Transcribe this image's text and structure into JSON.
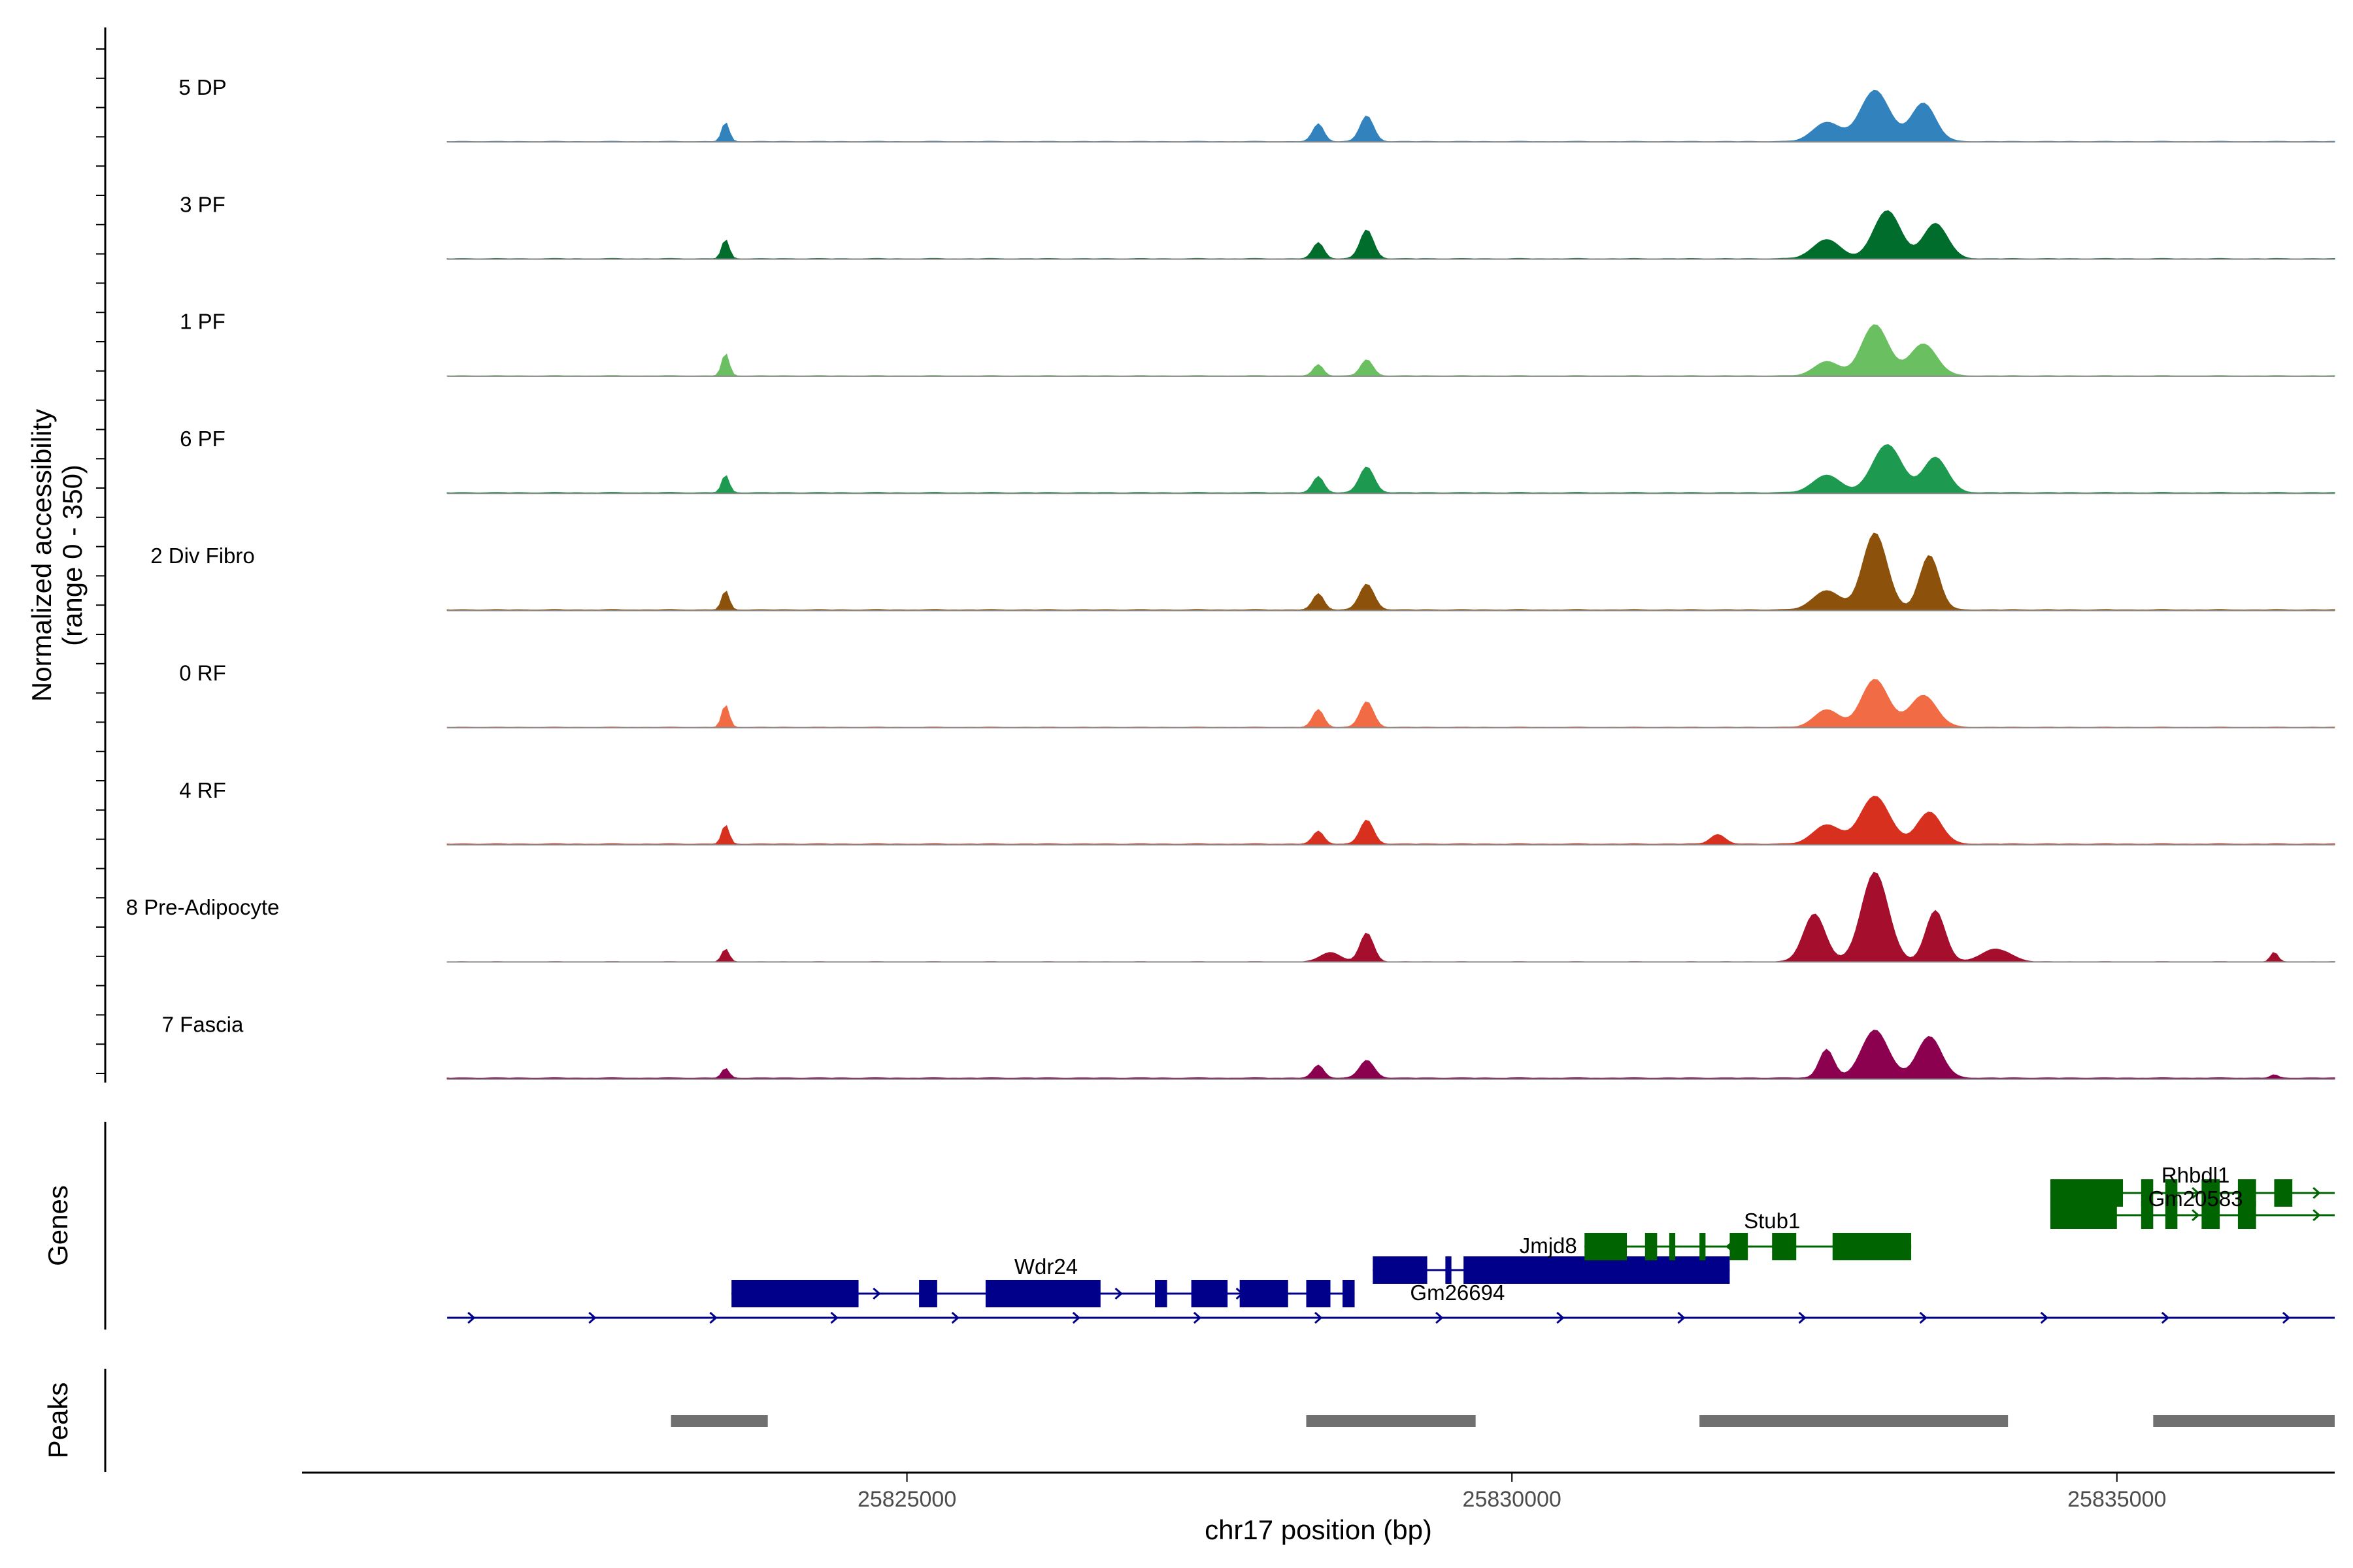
{
  "chart_data": {
    "type": "area",
    "title": "",
    "xlabel": "chr17 position (bp)",
    "ylabel_line1": "Normalized accessibility",
    "ylabel_line2": "(range 0 - 350)",
    "ylim": [
      0,
      350
    ],
    "xlim": [
      25820000,
      25836800
    ],
    "x_ticks": [
      25825000,
      25830000,
      25835000
    ],
    "x_tick_labels": [
      "25825000",
      "25830000",
      "25835000"
    ],
    "track_start": 25821200,
    "track_end": 25836800,
    "series": [
      {
        "name": "5 DP",
        "color": "#3182bd",
        "baseline": 1,
        "peaks": [
          [
            25823500,
            60,
            30
          ],
          [
            25828400,
            55,
            45
          ],
          [
            25828800,
            80,
            55
          ],
          [
            25833000,
            160,
            120
          ],
          [
            25833400,
            120,
            100
          ],
          [
            25832600,
            60,
            110
          ]
        ]
      },
      {
        "name": "3 PF",
        "color": "#006d2c",
        "baseline": 1,
        "peaks": [
          [
            25823500,
            60,
            30
          ],
          [
            25828400,
            50,
            45
          ],
          [
            25828800,
            90,
            55
          ],
          [
            25833100,
            150,
            110
          ],
          [
            25833500,
            110,
            100
          ],
          [
            25832600,
            60,
            110
          ]
        ]
      },
      {
        "name": "1 PF",
        "color": "#6abf60",
        "baseline": 1,
        "peaks": [
          [
            25823500,
            70,
            30
          ],
          [
            25828400,
            35,
            40
          ],
          [
            25828800,
            50,
            50
          ],
          [
            25833000,
            160,
            110
          ],
          [
            25833400,
            100,
            110
          ],
          [
            25832600,
            45,
            100
          ]
        ]
      },
      {
        "name": "6 PF",
        "color": "#1d9a4f",
        "baseline": 2,
        "peaks": [
          [
            25823500,
            55,
            30
          ],
          [
            25828400,
            50,
            45
          ],
          [
            25828800,
            80,
            60
          ],
          [
            25833100,
            150,
            120
          ],
          [
            25833500,
            110,
            100
          ],
          [
            25832600,
            55,
            110
          ]
        ]
      },
      {
        "name": "2 Div Fibro",
        "color": "#8c510a",
        "baseline": 2,
        "peaks": [
          [
            25823500,
            60,
            30
          ],
          [
            25828400,
            50,
            45
          ],
          [
            25828800,
            80,
            60
          ],
          [
            25833000,
            240,
            100
          ],
          [
            25833450,
            170,
            80
          ],
          [
            25832600,
            60,
            110
          ]
        ]
      },
      {
        "name": "0 RF",
        "color": "#f16b45",
        "baseline": 1,
        "peaks": [
          [
            25823500,
            70,
            30
          ],
          [
            25828400,
            55,
            45
          ],
          [
            25828800,
            80,
            55
          ],
          [
            25833000,
            150,
            110
          ],
          [
            25833400,
            100,
            110
          ],
          [
            25832600,
            55,
            100
          ]
        ]
      },
      {
        "name": "4 RF",
        "color": "#d7301f",
        "baseline": 2,
        "peaks": [
          [
            25823500,
            60,
            30
          ],
          [
            25828400,
            40,
            45
          ],
          [
            25828800,
            75,
            55
          ],
          [
            25833000,
            150,
            120
          ],
          [
            25833450,
            100,
            100
          ],
          [
            25832600,
            60,
            110
          ],
          [
            25831700,
            30,
            60
          ]
        ]
      },
      {
        "name": "8 Pre-Adipocyte",
        "color": "#a50f2d",
        "baseline": 0,
        "peaks": [
          [
            25823500,
            40,
            30
          ],
          [
            25828800,
            90,
            55
          ],
          [
            25828500,
            30,
            80
          ],
          [
            25832500,
            150,
            90
          ],
          [
            25833000,
            280,
            110
          ],
          [
            25833500,
            160,
            80
          ],
          [
            25834000,
            40,
            120
          ],
          [
            25836300,
            30,
            30
          ]
        ]
      },
      {
        "name": "7 Fascia",
        "color": "#8b004f",
        "baseline": 3,
        "peaks": [
          [
            25823500,
            30,
            30
          ],
          [
            25828400,
            40,
            45
          ],
          [
            25828800,
            55,
            60
          ],
          [
            25832600,
            90,
            60
          ],
          [
            25833000,
            150,
            110
          ],
          [
            25833450,
            130,
            100
          ],
          [
            25836300,
            10,
            30
          ]
        ]
      }
    ],
    "genes": {
      "label": "Genes",
      "items": [
        {
          "name": "Wdr24",
          "strand": "+",
          "color": "#00008b",
          "start": 25823550,
          "end": 25828700,
          "row": 1,
          "exons": [
            [
              25823550,
              25824600
            ],
            [
              25825100,
              25825250
            ],
            [
              25825650,
              25826600
            ],
            [
              25827050,
              25827150
            ],
            [
              25827350,
              25827650
            ],
            [
              25827750,
              25828150
            ],
            [
              25828300,
              25828500
            ],
            [
              25828600,
              25828700
            ]
          ]
        },
        {
          "name": "Gm26694",
          "strand": "+",
          "color": "#00008b",
          "start": 25821200,
          "end": 25836800,
          "row": 2,
          "exons": []
        },
        {
          "name": "Jmjd8",
          "strand": "+",
          "color": "#00008b",
          "start": 25828850,
          "end": 25831800,
          "row": 0,
          "exons": [
            [
              25828850,
              25829300
            ],
            [
              25829450,
              25829500
            ],
            [
              25829600,
              25831800
            ]
          ]
        },
        {
          "name": "Stub1",
          "strand": "-",
          "color": "#006400",
          "start": 25830600,
          "end": 25833300,
          "row": -1,
          "exons": [
            [
              25830600,
              25830950
            ],
            [
              25831100,
              25831200
            ],
            [
              25831300,
              25831350
            ],
            [
              25831550,
              25831600
            ],
            [
              25831800,
              25831950
            ],
            [
              25832150,
              25832350
            ],
            [
              25832650,
              25833300
            ]
          ]
        },
        {
          "name": "Rhbdl1",
          "strand": "+",
          "color": "#006400",
          "start": 25834450,
          "end": 25836800,
          "row": -3,
          "exons": [
            [
              25834450,
              25835050
            ],
            [
              25835200,
              25835300
            ],
            [
              25835400,
              25835500
            ],
            [
              25835700,
              25835850
            ],
            [
              25836000,
              25836150
            ],
            [
              25836300,
              25836450
            ]
          ]
        },
        {
          "name": "Gm20583",
          "strand": "+",
          "color": "#006400",
          "start": 25834450,
          "end": 25836800,
          "row": -2,
          "exons": [
            [
              25834450,
              25835000
            ],
            [
              25835200,
              25835300
            ],
            [
              25835400,
              25835500
            ],
            [
              25835700,
              25835850
            ],
            [
              25836000,
              25836150
            ]
          ]
        }
      ]
    },
    "peaks": {
      "label": "Peaks",
      "color": "#707070",
      "regions": [
        [
          25823050,
          25823850
        ],
        [
          25828300,
          25829700
        ],
        [
          25831550,
          25834100
        ],
        [
          25835300,
          25836800
        ]
      ]
    }
  }
}
